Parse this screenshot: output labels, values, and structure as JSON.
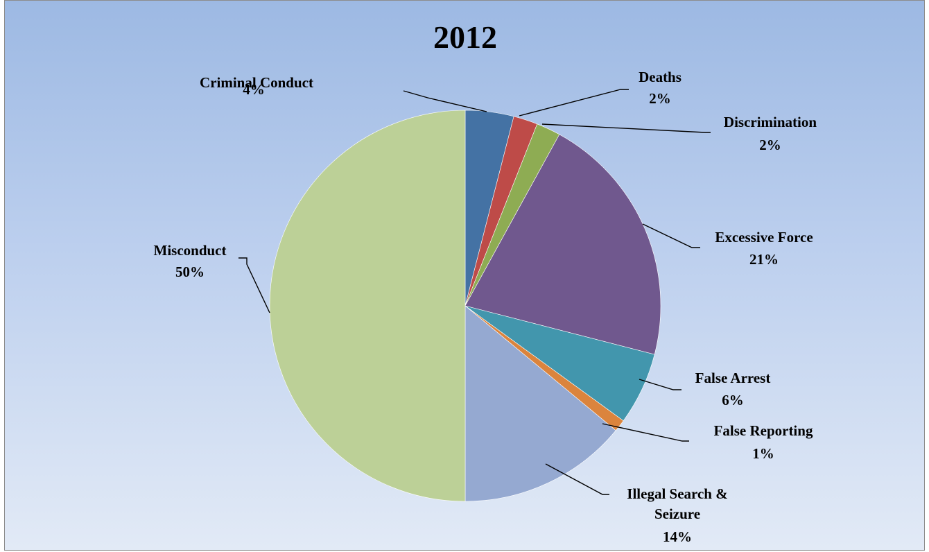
{
  "chart_data": {
    "type": "pie",
    "title": "2012",
    "slices": [
      {
        "name": "Criminal Conduct",
        "value": 4,
        "label_pct": "4%",
        "color": "#4472a4"
      },
      {
        "name": "Deaths",
        "value": 2,
        "label_pct": "2%",
        "color": "#be4b48"
      },
      {
        "name": "Discrimination",
        "value": 2,
        "label_pct": "2%",
        "color": "#8eac53"
      },
      {
        "name": "Excessive Force",
        "value": 21,
        "label_pct": "21%",
        "color": "#70588e"
      },
      {
        "name": "False Arrest",
        "value": 6,
        "label_pct": "6%",
        "color": "#4296ad"
      },
      {
        "name": "False Reporting",
        "value": 1,
        "label_pct": "1%",
        "color": "#db843d"
      },
      {
        "name": "Illegal Search & Seizure",
        "value": 14,
        "label_pct": "14%",
        "color": "#95a9d1"
      },
      {
        "name": "Misconduct",
        "value": 50,
        "label_pct": "50%",
        "color": "#bcd097"
      }
    ],
    "start_angle": "12 o'clock",
    "direction": "clockwise",
    "labels": "outside with leader lines",
    "legend": "none"
  }
}
